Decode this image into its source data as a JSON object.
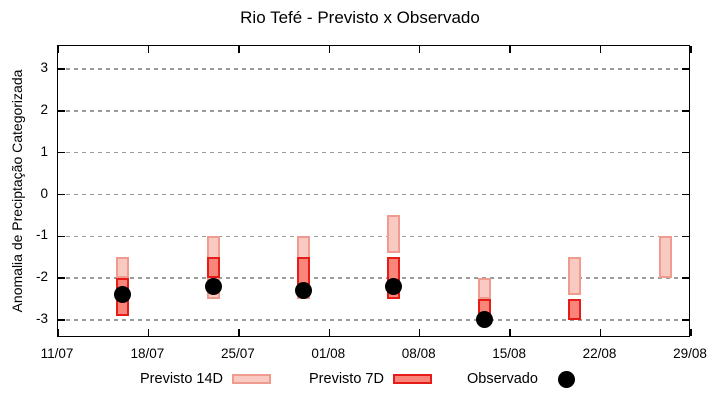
{
  "title": "Rio Tefé - Previsto x Observado",
  "y_axis": {
    "label": "Anomalia de Preciptação Categorizada",
    "tick_labels": [
      "3",
      "2",
      "1",
      "0",
      "-1",
      "-2",
      "-3"
    ],
    "tick_values": [
      3,
      2,
      1,
      0,
      -1,
      -2,
      -3
    ]
  },
  "x_axis": {
    "tick_labels": [
      "11/07",
      "18/07",
      "25/07",
      "01/08",
      "08/08",
      "15/08",
      "22/08",
      "29/08"
    ]
  },
  "legend": {
    "previsto14_label": "Previsto 14D",
    "previsto7_label": "Previsto 7D",
    "observado_label": "Observado"
  },
  "colors": {
    "p14_fill": "#f9cac2",
    "p14_border": "#f09b90",
    "p7_fill": "#f9857b",
    "p7_border": "#e51c17",
    "observado": "#000000",
    "grid": "#9b9b9b",
    "axis": "#000000"
  },
  "chart_data": {
    "type": "bar",
    "title": "Rio Tefé - Previsto x Observado",
    "xlabel": "",
    "ylabel": "Anomalia de Preciptação Categorizada",
    "ylim": [
      -3.4,
      3.5
    ],
    "x_tick_labels": [
      "11/07",
      "18/07",
      "25/07",
      "01/08",
      "08/08",
      "15/08",
      "22/08",
      "29/08"
    ],
    "grid": "horizontal-dashed",
    "legend_position": "bottom-outside",
    "series": [
      {
        "name": "Previsto 14D",
        "type": "box-range",
        "boxes": [
          {
            "date": "16/07",
            "high": -1.5,
            "low": -2.0
          },
          {
            "date": "23/07",
            "high": -1.0,
            "low": -2.5
          },
          {
            "date": "30/07",
            "high": -1.0,
            "low": -2.5
          },
          {
            "date": "06/08",
            "high": -0.5,
            "low": -1.4
          },
          {
            "date": "13/08",
            "high": -2.0,
            "low": -2.5
          },
          {
            "date": "20/08",
            "high": -1.5,
            "low": -2.4
          },
          {
            "date": "27/08",
            "high": -1.0,
            "low": -2.0
          }
        ]
      },
      {
        "name": "Previsto 7D",
        "type": "box-range",
        "boxes": [
          {
            "date": "16/07",
            "high": -2.0,
            "low": -2.9
          },
          {
            "date": "23/07",
            "high": -1.5,
            "low": -2.0
          },
          {
            "date": "30/07",
            "high": -1.5,
            "low": -2.2
          },
          {
            "date": "06/08",
            "high": -1.5,
            "low": -2.5
          },
          {
            "date": "13/08",
            "high": -2.5,
            "low": -3.0
          },
          {
            "date": "20/08",
            "high": -2.5,
            "low": -3.0
          }
        ]
      },
      {
        "name": "Observado",
        "type": "scatter",
        "points": [
          {
            "date": "16/07",
            "value": -2.4
          },
          {
            "date": "23/07",
            "value": -2.2
          },
          {
            "date": "30/07",
            "value": -2.3
          },
          {
            "date": "06/08",
            "value": -2.2
          },
          {
            "date": "13/08",
            "value": -3.0
          }
        ]
      }
    ]
  }
}
